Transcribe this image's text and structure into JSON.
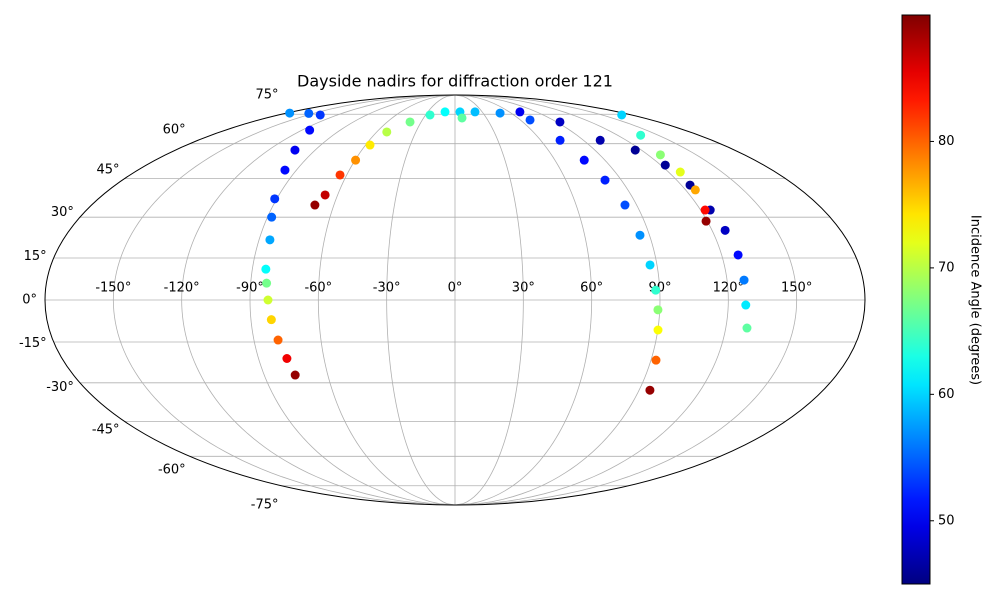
{
  "chart_data": {
    "type": "scatter",
    "projection": "mollweide",
    "title": "Dayside nadirs for diffraction order 121",
    "colorbar_label": "Incidence Angle (degrees)",
    "colormap": "jet",
    "clim": [
      45,
      90
    ],
    "cticks": [
      50,
      60,
      70,
      80
    ],
    "xlim": [
      -180,
      180
    ],
    "ylim": [
      -90,
      90
    ],
    "grid": true,
    "xticks": [
      {
        "value": -150,
        "label": "-150°"
      },
      {
        "value": -120,
        "label": "-120°"
      },
      {
        "value": -90,
        "label": "-90°"
      },
      {
        "value": -60,
        "label": "-60°"
      },
      {
        "value": -30,
        "label": "-30°"
      },
      {
        "value": 0,
        "label": "0°"
      },
      {
        "value": 30,
        "label": "30°"
      },
      {
        "value": 60,
        "label": "60°"
      },
      {
        "value": 90,
        "label": "90°"
      },
      {
        "value": 120,
        "label": "120°"
      },
      {
        "value": 150,
        "label": "150°"
      }
    ],
    "yticks": [
      {
        "value": -75,
        "label": "-75°"
      },
      {
        "value": -60,
        "label": "-60°"
      },
      {
        "value": -45,
        "label": "-45°"
      },
      {
        "value": -30,
        "label": "-30°"
      },
      {
        "value": -15,
        "label": "-15°"
      },
      {
        "value": 0,
        "label": "0°"
      },
      {
        "value": 15,
        "label": "15°"
      },
      {
        "value": 30,
        "label": "30°"
      },
      {
        "value": 45,
        "label": "45°"
      },
      {
        "value": 60,
        "label": "60°"
      },
      {
        "value": 75,
        "label": "75°"
      }
    ],
    "series": [
      {
        "x": [
          -75.4,
          -77,
          -79.2,
          -81,
          -82.1,
          -83,
          -84,
          -85,
          -88,
          -91,
          -96.5,
          -103,
          -114,
          -137.5,
          -155,
          -176.8
        ],
        "y": [
          -27.1,
          -21,
          -14.3,
          -7,
          0,
          6,
          11,
          21.6,
          30,
          37,
          48.5,
          57.1,
          66.5,
          74.6,
          75.5,
          75.7
        ],
        "values": [
          89,
          85,
          80,
          75,
          71,
          67,
          62,
          58,
          55,
          53,
          51,
          50,
          51,
          53,
          55,
          57
        ]
      },
      {
        "x": [
          -69.4,
          -66.4,
          -63.7,
          -59.7,
          -57,
          -52.3,
          -39.8,
          -25.5,
          -11,
          5.5,
          6.7
        ],
        "y": [
          34.6,
          38.5,
          46.5,
          52.7,
          59.4,
          65.6,
          70.7,
          74.6,
          76.4,
          76.4,
          72.9
        ],
        "values": [
          89,
          87,
          82,
          78,
          74,
          70,
          67,
          64,
          62,
          60,
          66
        ]
      },
      {
        "x": [
          22.1,
          48.2,
          68.9,
          73.6,
          77.6,
          81.2,
          84.2,
          85.6,
          86.9,
          88.2,
          89.2,
          90.1,
          92.3,
          95.3
        ],
        "y": [
          76.4,
          75.7,
          71.8,
          61.6,
          52.7,
          44.4,
          34.6,
          23.3,
          12.5,
          3.5,
          -3.5,
          -10.7,
          -21.6,
          -32.8
        ],
        "values": [
          59,
          57,
          54,
          52,
          51,
          52,
          54,
          57,
          60,
          64,
          68,
          73,
          80,
          89
        ]
      },
      {
        "x": [
          71.7,
          92.9,
          101.7,
          116,
          122.6,
          124.6,
          124.7,
          126.1,
          127.4,
          127.5,
          127.7,
          129.4
        ],
        "y": [
          76.4,
          70.7,
          61.6,
          57.1,
          50.6,
          42.4,
          32.7,
          25.1,
          16.1,
          7.1,
          -1.8,
          -10
        ],
        "values": [
          50,
          48,
          47,
          46,
          46,
          46,
          47,
          48,
          51,
          56,
          61,
          66
        ]
      },
      {
        "x": [
          170.1,
          137,
          127.7,
          126.6,
          125.1,
          122.2,
          119.4
        ],
        "y": [
          74.6,
          64,
          55,
          47.7,
          40.5,
          32.7,
          28.5
        ],
        "values": [
          60,
          64,
          68,
          72,
          77,
          84,
          89
        ]
      }
    ]
  }
}
